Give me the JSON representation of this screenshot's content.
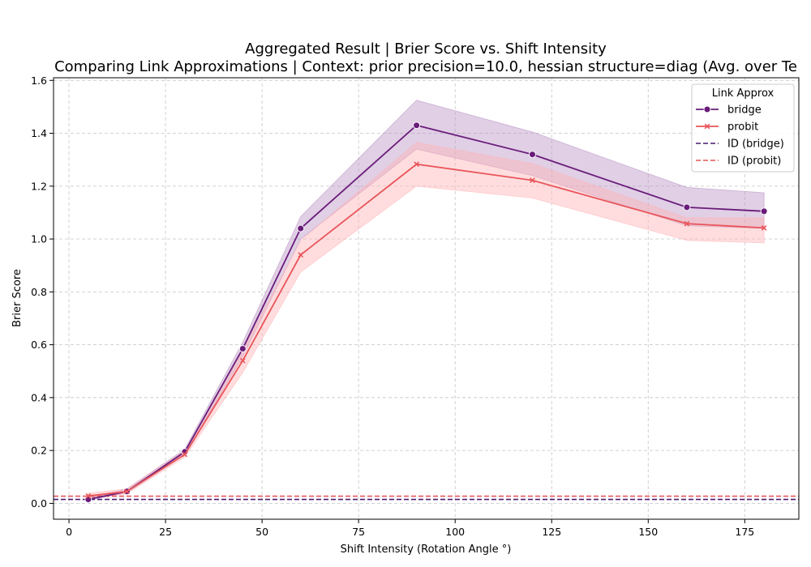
{
  "chart_data": {
    "type": "line",
    "title": "Aggregated Result | Brier Score vs. Shift Intensity",
    "subtitle": "Comparing Link Approximations | Context: prior precision=10.0, hessian structure=diag (Avg. over Te",
    "xlabel": "Shift Intensity (Rotation Angle °)",
    "ylabel": "Brier Score",
    "xlim": [
      -4,
      189
    ],
    "ylim": [
      -0.06,
      1.61
    ],
    "xticks": [
      0,
      25,
      50,
      75,
      100,
      125,
      150,
      175
    ],
    "yticks": [
      0.0,
      0.2,
      0.4,
      0.6,
      0.8,
      1.0,
      1.2,
      1.4,
      1.6
    ],
    "grid": true,
    "legend": {
      "title": "Link Approx",
      "placement": "top-right"
    },
    "x": [
      5,
      15,
      30,
      45,
      60,
      90,
      120,
      160,
      180
    ],
    "series": [
      {
        "name": "bridge",
        "color": "#6a1b7a",
        "band_color": "#b58cc2",
        "marker": "circle",
        "values": [
          0.015,
          0.045,
          0.195,
          0.585,
          1.04,
          1.43,
          1.32,
          1.12,
          1.105
        ],
        "lower": [
          0.012,
          0.04,
          0.185,
          0.555,
          1.0,
          1.34,
          1.24,
          1.05,
          1.04
        ],
        "upper": [
          0.02,
          0.055,
          0.205,
          0.61,
          1.085,
          1.525,
          1.405,
          1.195,
          1.175
        ]
      },
      {
        "name": "probit",
        "color": "#e8555a",
        "band_color": "#ffb3b5",
        "marker": "x",
        "values": [
          0.028,
          0.045,
          0.185,
          0.54,
          0.94,
          1.283,
          1.222,
          1.058,
          1.042
        ],
        "lower": [
          0.018,
          0.036,
          0.175,
          0.495,
          0.875,
          1.2,
          1.155,
          0.995,
          0.985
        ],
        "upper": [
          0.038,
          0.055,
          0.2,
          0.58,
          0.995,
          1.365,
          1.285,
          1.08,
          1.08
        ]
      }
    ],
    "reference_lines": [
      {
        "name": "ID (bridge)",
        "y": 0.015,
        "color": "#4a1a6e",
        "style": "dashed"
      },
      {
        "name": "ID (probit)",
        "y": 0.027,
        "color": "#e8555a",
        "style": "dashed"
      }
    ]
  }
}
